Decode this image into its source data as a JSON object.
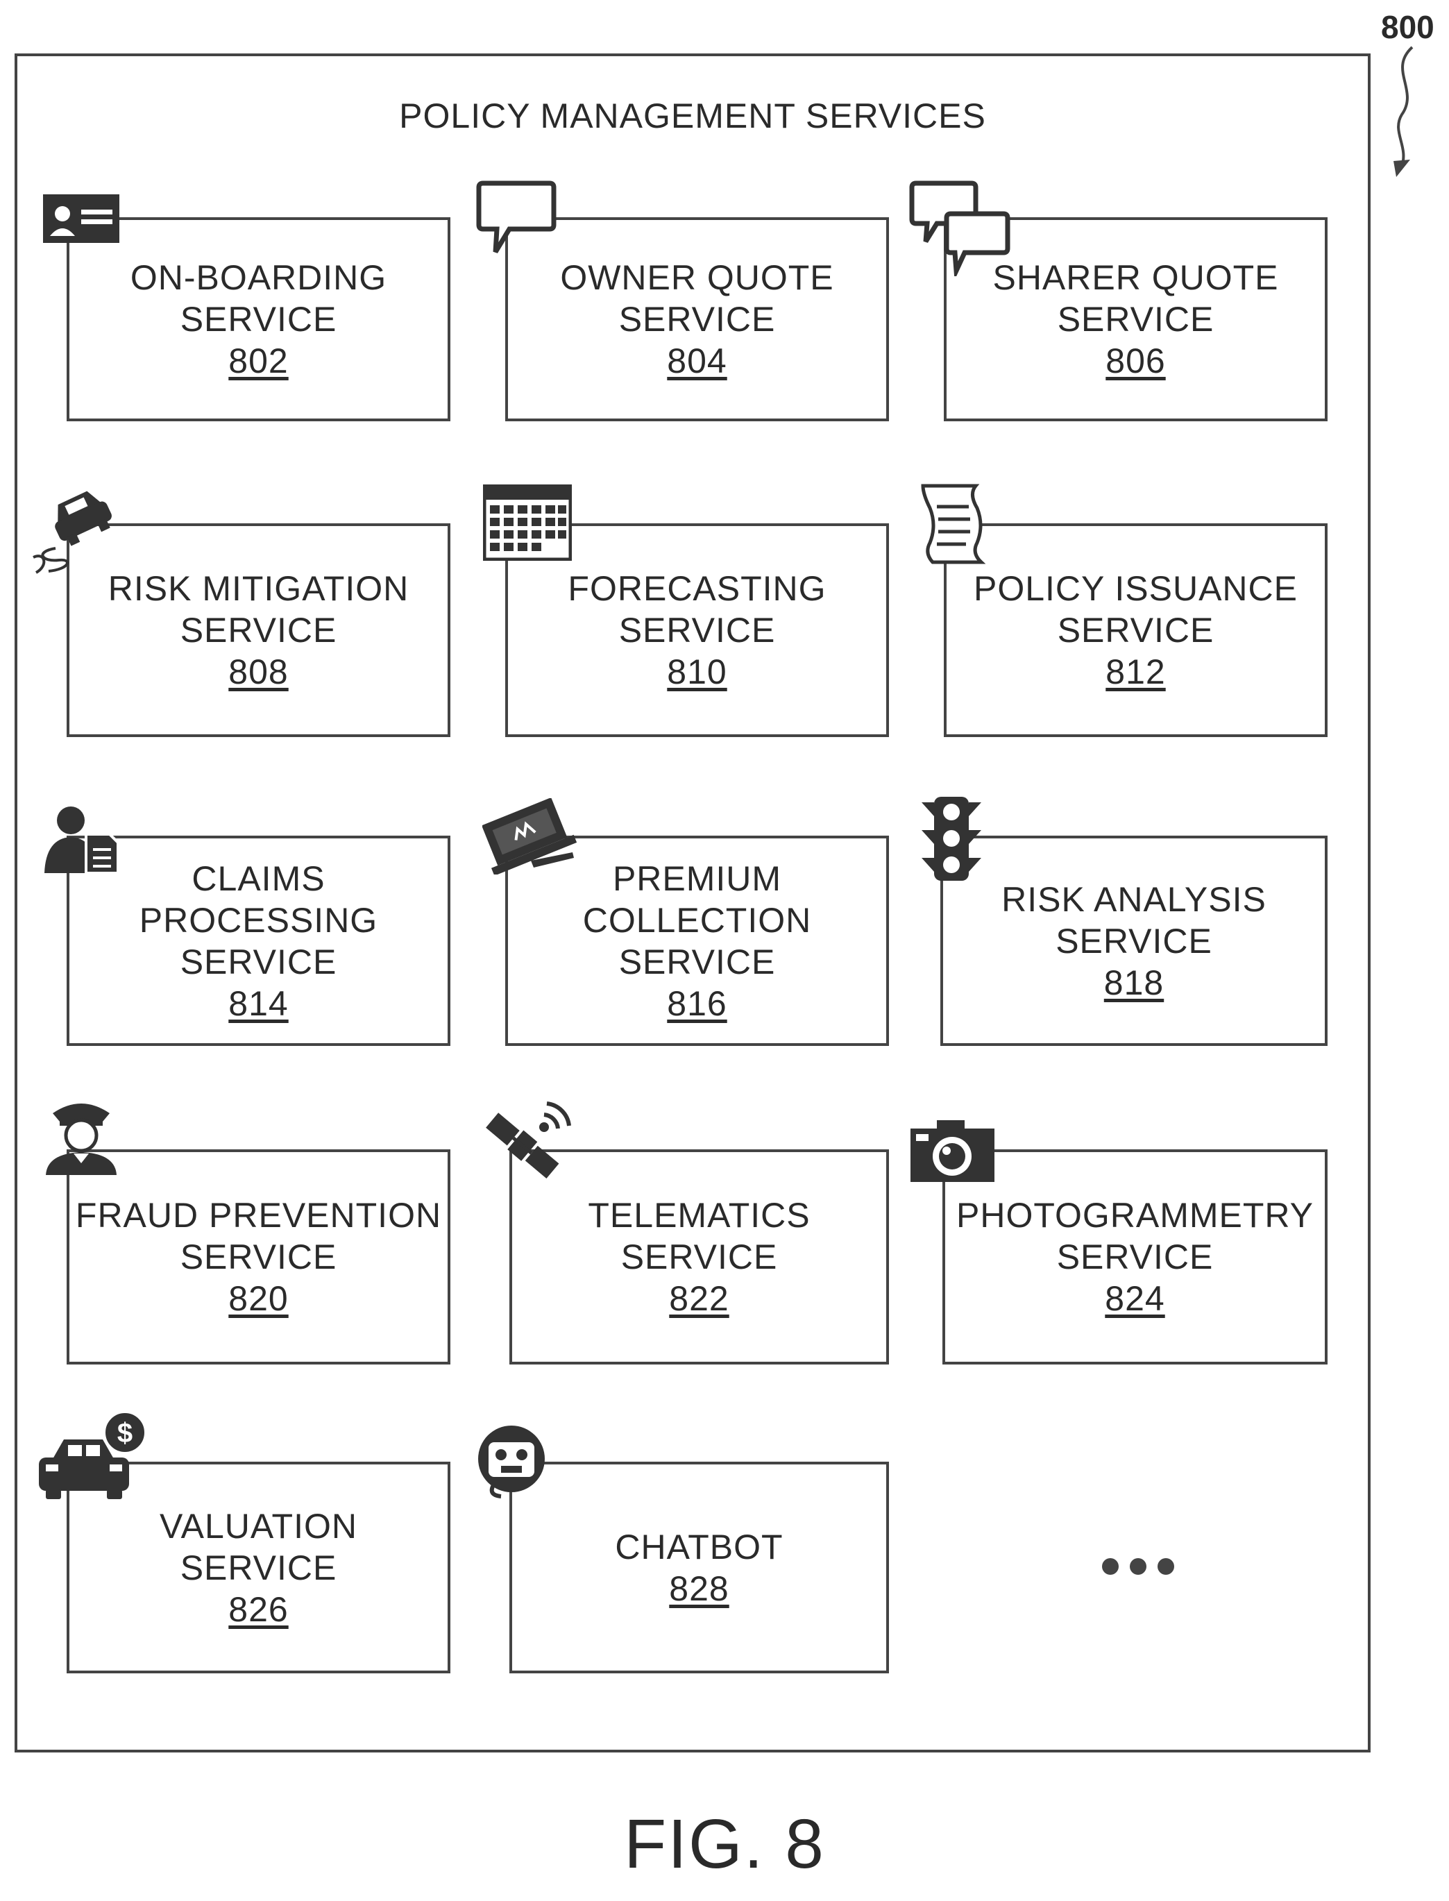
{
  "diagram": {
    "title": "POLICY MANAGEMENT SERVICES",
    "ref": "800",
    "figure_label": "FIG. 8",
    "ellipsis": "•••",
    "services": [
      {
        "line1": "ON-BOARDING",
        "line2": "SERVICE",
        "num": "802",
        "icon": "id-card-icon"
      },
      {
        "line1": "OWNER QUOTE",
        "line2": "SERVICE",
        "num": "804",
        "icon": "speech-bubble-icon"
      },
      {
        "line1": "SHARER QUOTE",
        "line2": "SERVICE",
        "num": "806",
        "icon": "speech-bubbles-icon"
      },
      {
        "line1": "RISK MITIGATION",
        "line2": "SERVICE",
        "num": "808",
        "icon": "skidding-car-icon"
      },
      {
        "line1": "FORECASTING",
        "line2": "SERVICE",
        "num": "810",
        "icon": "calendar-icon"
      },
      {
        "line1": "POLICY ISSUANCE",
        "line2": "SERVICE",
        "num": "812",
        "icon": "scroll-document-icon"
      },
      {
        "line1": "CLAIMS PROCESSING",
        "line2": "SERVICE",
        "num": "814",
        "icon": "person-document-icon"
      },
      {
        "line1": "PREMIUM",
        "line2": "COLLECTION",
        "line3": "SERVICE",
        "num": "816",
        "icon": "laptop-payment-icon"
      },
      {
        "line1": "RISK ANALYSIS",
        "line2": "SERVICE",
        "num": "818",
        "icon": "traffic-light-icon"
      },
      {
        "line1": "FRAUD PREVENTION",
        "line2": "SERVICE",
        "num": "820",
        "icon": "police-officer-icon"
      },
      {
        "line1": "TELEMATICS",
        "line2": "SERVICE",
        "num": "822",
        "icon": "satellite-icon"
      },
      {
        "line1": "PHOTOGRAMMETRY",
        "line2": "SERVICE",
        "num": "824",
        "icon": "camera-icon"
      },
      {
        "line1": "VALUATION",
        "line2": "SERVICE",
        "num": "826",
        "icon": "car-dollar-icon"
      },
      {
        "line1": "CHATBOT",
        "num": "828",
        "icon": "robot-head-icon"
      }
    ]
  }
}
